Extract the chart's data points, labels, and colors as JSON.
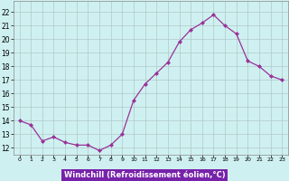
{
  "x": [
    0,
    1,
    2,
    3,
    4,
    5,
    6,
    7,
    8,
    9,
    10,
    11,
    12,
    13,
    14,
    15,
    16,
    17,
    18,
    19,
    20,
    21,
    22,
    23
  ],
  "y": [
    14.0,
    13.7,
    12.5,
    12.8,
    12.4,
    12.2,
    12.2,
    11.8,
    12.2,
    13.0,
    15.5,
    16.7,
    17.5,
    18.3,
    19.8,
    20.7,
    21.2,
    21.8,
    21.0,
    20.4,
    18.4,
    18.0,
    17.3,
    17.0
  ],
  "line_color": "#993399",
  "marker": "D",
  "marker_size": 2,
  "bg_color": "#cff0f0",
  "grid_color": "#b0c8c8",
  "xlabel": "Windchill (Refroidissement éolien,°C)",
  "xlabel_bg": "#7722aa",
  "xlabel_fg": "#ffffff",
  "ylabel_ticks": [
    12,
    13,
    14,
    15,
    16,
    17,
    18,
    19,
    20,
    21,
    22
  ],
  "ylim": [
    11.5,
    22.8
  ],
  "xlim": [
    -0.5,
    23.5
  ],
  "xtick_labels": [
    "0",
    "1",
    "2",
    "3",
    "4",
    "5",
    "6",
    "7",
    "8",
    "9",
    "10",
    "11",
    "12",
    "13",
    "14",
    "15",
    "16",
    "17",
    "18",
    "19",
    "20",
    "21",
    "22",
    "23"
  ]
}
